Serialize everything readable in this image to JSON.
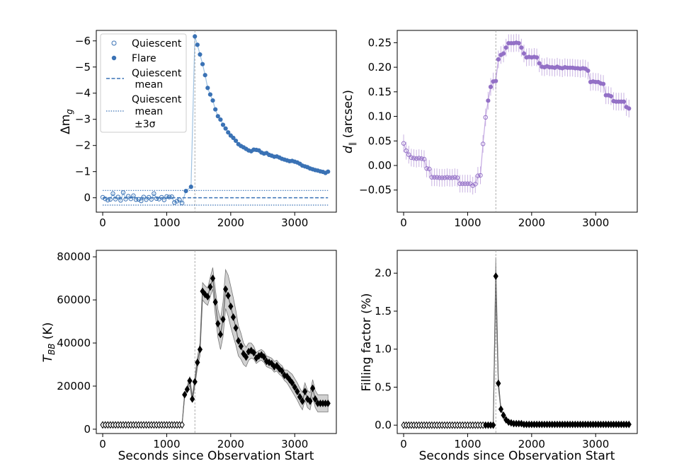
{
  "figure": {
    "xlabel": "Seconds since Observation Start",
    "flare_peak_time": 1440
  },
  "colors": {
    "quiescent": "#3a72b5",
    "flare": "#3a72b5",
    "purple": "#9370c6",
    "gray_band": "#9a9a9a",
    "black": "#000000"
  },
  "chart_data": [
    {
      "id": "dmag",
      "type": "scatter",
      "ylabel": "Δm_g",
      "ylabel_main": "Δm",
      "ylabel_sub": "g",
      "xlim": [
        -100,
        3650
      ],
      "ylim": [
        0.55,
        -6.4
      ],
      "xticks": [
        0,
        1000,
        2000,
        3000
      ],
      "yticks": [
        -6,
        -5,
        -4,
        -3,
        -2,
        -1,
        0
      ],
      "quiescent_mean": 0.0,
      "quiescent_3sigma": 0.28,
      "legend": {
        "position": "top-left",
        "quiescent": "Quiescent",
        "flare": "Flare",
        "mean_line1": "Quiescent",
        "mean_line2": " mean",
        "sig_line1": "Quiescent",
        "sig_line2": " mean",
        "sig_line3": "±3σ"
      },
      "quiescent": {
        "x": [
          0,
          40,
          80,
          120,
          160,
          200,
          240,
          280,
          320,
          360,
          400,
          440,
          480,
          520,
          560,
          600,
          640,
          680,
          720,
          760,
          800,
          840,
          880,
          920,
          960,
          1000,
          1040,
          1080,
          1120,
          1160,
          1200,
          1240
        ],
        "y": [
          -0.02,
          0.04,
          0.09,
          0.06,
          -0.16,
          0.05,
          -0.03,
          0.1,
          -0.2,
          0.05,
          -0.06,
          0.04,
          -0.08,
          0.07,
          0.06,
          0.12,
          -0.03,
          0.07,
          -0.02,
          0.06,
          -0.16,
          0.03,
          0.05,
          -0.02,
          0.08,
          -0.05,
          -0.03,
          -0.04,
          0.18,
          0.13,
          0.08,
          0.2
        ]
      },
      "flare": {
        "x": [
          1300,
          1380,
          1440,
          1480,
          1520,
          1560,
          1600,
          1640,
          1680,
          1720,
          1760,
          1800,
          1840,
          1880,
          1920,
          1960,
          2000,
          2040,
          2080,
          2120,
          2160,
          2200,
          2240,
          2280,
          2320,
          2360,
          2400,
          2440,
          2480,
          2520,
          2560,
          2600,
          2640,
          2680,
          2720,
          2760,
          2800,
          2840,
          2880,
          2920,
          2960,
          3000,
          3040,
          3080,
          3120,
          3160,
          3200,
          3240,
          3280,
          3320,
          3360,
          3400,
          3440,
          3480,
          3520
        ],
        "y": [
          -0.26,
          -0.42,
          -6.17,
          -5.85,
          -5.48,
          -5.11,
          -4.69,
          -4.2,
          -3.95,
          -3.72,
          -3.38,
          -3.12,
          -2.99,
          -2.79,
          -2.65,
          -2.5,
          -2.38,
          -2.29,
          -2.18,
          -2.05,
          -1.98,
          -1.93,
          -1.87,
          -1.81,
          -1.78,
          -1.84,
          -1.83,
          -1.81,
          -1.73,
          -1.69,
          -1.71,
          -1.64,
          -1.61,
          -1.57,
          -1.58,
          -1.54,
          -1.49,
          -1.46,
          -1.43,
          -1.4,
          -1.41,
          -1.38,
          -1.35,
          -1.3,
          -1.23,
          -1.2,
          -1.17,
          -1.12,
          -1.09,
          -1.06,
          -1.04,
          -1.01,
          -0.99,
          -0.95,
          -1.0
        ]
      }
    },
    {
      "id": "dpar",
      "type": "scatter",
      "ylabel": "d∥ (arcsec)",
      "ylabel_main": "d",
      "ylabel_sub": "∥",
      "ylabel_unit": " (arcsec)",
      "xlim": [
        -100,
        3650
      ],
      "ylim": [
        -0.095,
        0.275
      ],
      "xticks": [
        0,
        1000,
        2000,
        3000
      ],
      "yticks": [
        -0.05,
        0.0,
        0.05,
        0.1,
        0.15,
        0.2,
        0.25
      ],
      "ytick_labels": [
        "−0.05",
        "0.00",
        "0.05",
        "0.10",
        "0.15",
        "0.20",
        "0.25"
      ],
      "error": 0.018,
      "quiescent": {
        "x": [
          0,
          40,
          80,
          120,
          160,
          200,
          240,
          280,
          320,
          360,
          400,
          440,
          480,
          520,
          560,
          600,
          640,
          680,
          720,
          760,
          800,
          840,
          880,
          920,
          960,
          1000,
          1040,
          1080,
          1120,
          1160,
          1200,
          1240,
          1280
        ],
        "y": [
          0.045,
          0.03,
          0.022,
          0.016,
          0.015,
          0.014,
          0.015,
          0.014,
          0.013,
          -0.006,
          -0.007,
          -0.024,
          -0.024,
          -0.024,
          -0.025,
          -0.025,
          -0.025,
          -0.024,
          -0.025,
          -0.025,
          -0.024,
          -0.025,
          -0.037,
          -0.037,
          -0.037,
          -0.037,
          -0.037,
          -0.041,
          -0.038,
          -0.021,
          -0.02,
          0.044,
          0.098
        ]
      },
      "flare": {
        "x": [
          1320,
          1360,
          1400,
          1440,
          1480,
          1520,
          1560,
          1600,
          1640,
          1680,
          1720,
          1760,
          1800,
          1840,
          1880,
          1920,
          1960,
          2000,
          2040,
          2080,
          2120,
          2160,
          2200,
          2240,
          2280,
          2320,
          2360,
          2400,
          2440,
          2480,
          2520,
          2560,
          2600,
          2640,
          2680,
          2720,
          2760,
          2800,
          2840,
          2880,
          2920,
          2960,
          3000,
          3040,
          3080,
          3120,
          3160,
          3200,
          3240,
          3280,
          3320,
          3360,
          3400,
          3440,
          3480,
          3520
        ],
        "y": [
          0.132,
          0.16,
          0.171,
          0.172,
          0.216,
          0.225,
          0.228,
          0.24,
          0.249,
          0.249,
          0.249,
          0.25,
          0.249,
          0.24,
          0.228,
          0.22,
          0.221,
          0.22,
          0.221,
          0.22,
          0.208,
          0.201,
          0.2,
          0.202,
          0.2,
          0.2,
          0.199,
          0.201,
          0.199,
          0.198,
          0.2,
          0.199,
          0.199,
          0.199,
          0.198,
          0.198,
          0.197,
          0.198,
          0.197,
          0.193,
          0.17,
          0.171,
          0.17,
          0.17,
          0.167,
          0.166,
          0.143,
          0.143,
          0.141,
          0.131,
          0.13,
          0.13,
          0.13,
          0.13,
          0.119,
          0.116
        ]
      }
    },
    {
      "id": "tbb",
      "type": "scatter",
      "ylabel": "T_BB (K)",
      "ylabel_main": "T",
      "ylabel_sub": "BB",
      "ylabel_unit": " (K)",
      "xlim": [
        -100,
        3650
      ],
      "ylim": [
        -2000,
        83000
      ],
      "xticks": [
        0,
        1000,
        2000,
        3000
      ],
      "yticks": [
        0,
        20000,
        40000,
        60000,
        80000
      ],
      "x": [
        0,
        40,
        80,
        120,
        160,
        200,
        240,
        280,
        320,
        360,
        400,
        440,
        480,
        520,
        560,
        600,
        640,
        680,
        720,
        760,
        800,
        840,
        880,
        920,
        960,
        1000,
        1040,
        1080,
        1120,
        1160,
        1200,
        1240,
        1280,
        1320,
        1360,
        1400,
        1440,
        1480,
        1520,
        1560,
        1600,
        1640,
        1680,
        1720,
        1760,
        1800,
        1840,
        1880,
        1920,
        1960,
        2000,
        2040,
        2080,
        2120,
        2160,
        2200,
        2240,
        2280,
        2320,
        2360,
        2400,
        2440,
        2480,
        2520,
        2560,
        2600,
        2640,
        2680,
        2720,
        2760,
        2800,
        2840,
        2880,
        2920,
        2960,
        3000,
        3040,
        3080,
        3120,
        3160,
        3200,
        3240,
        3280,
        3320,
        3360,
        3400,
        3440,
        3480,
        3520
      ],
      "y": [
        2000,
        2000,
        2000,
        2000,
        2000,
        2000,
        2000,
        2000,
        2000,
        2000,
        2000,
        2000,
        2000,
        2000,
        2000,
        2000,
        2000,
        2000,
        2000,
        2000,
        2000,
        2000,
        2000,
        2000,
        2000,
        2000,
        2000,
        2000,
        2000,
        2000,
        2000,
        2000,
        16000,
        18500,
        22500,
        14000,
        22000,
        31000,
        37000,
        64000,
        62500,
        61500,
        66000,
        70000,
        59000,
        49000,
        44000,
        51000,
        65000,
        62000,
        57000,
        52000,
        47000,
        41000,
        38500,
        35000,
        33500,
        36000,
        36500,
        35500,
        33000,
        34000,
        34500,
        33500,
        31500,
        31000,
        30500,
        29000,
        29500,
        28000,
        27000,
        25000,
        24500,
        23000,
        21500,
        19500,
        17500,
        15000,
        13000,
        17500,
        14000,
        13000,
        19000,
        14000,
        12000,
        12000,
        12000,
        12000,
        12000
      ],
      "err": [
        0,
        0,
        0,
        0,
        0,
        0,
        0,
        0,
        0,
        0,
        0,
        0,
        0,
        0,
        0,
        0,
        0,
        0,
        0,
        0,
        0,
        0,
        0,
        0,
        0,
        0,
        0,
        0,
        0,
        0,
        0,
        0,
        1200,
        1500,
        2000,
        1500,
        2000,
        2500,
        3000,
        4000,
        4000,
        4000,
        4500,
        5000,
        6000,
        6500,
        7000,
        8000,
        9000,
        9500,
        9500,
        9000,
        8000,
        7000,
        6000,
        5000,
        4500,
        4000,
        3500,
        3000,
        2500,
        2500,
        2500,
        2500,
        2500,
        2500,
        2500,
        2500,
        2500,
        2500,
        2500,
        2500,
        3000,
        3500,
        4000,
        4000,
        4000,
        4000,
        4000,
        4000,
        4000,
        4000,
        4000,
        4000,
        4000,
        4000,
        4000,
        4000,
        4000
      ]
    },
    {
      "id": "fill",
      "type": "scatter",
      "ylabel": "Filling factor (%)",
      "xlim": [
        -100,
        3650
      ],
      "ylim": [
        -0.11,
        2.3
      ],
      "xticks": [
        0,
        1000,
        2000,
        3000
      ],
      "yticks": [
        0.0,
        0.5,
        1.0,
        1.5,
        2.0
      ],
      "ytick_labels": [
        "0.0",
        "0.5",
        "1.0",
        "1.5",
        "2.0"
      ],
      "x": [
        0,
        40,
        80,
        120,
        160,
        200,
        240,
        280,
        320,
        360,
        400,
        440,
        480,
        520,
        560,
        600,
        640,
        680,
        720,
        760,
        800,
        840,
        880,
        920,
        960,
        1000,
        1040,
        1080,
        1120,
        1160,
        1200,
        1240,
        1280,
        1320,
        1360,
        1400,
        1440,
        1480,
        1520,
        1560,
        1600,
        1640,
        1680,
        1720,
        1760,
        1800,
        1840,
        1880,
        1920,
        1960,
        2000,
        2040,
        2080,
        2120,
        2160,
        2200,
        2240,
        2280,
        2320,
        2360,
        2400,
        2440,
        2480,
        2520,
        2560,
        2600,
        2640,
        2680,
        2720,
        2760,
        2800,
        2840,
        2880,
        2920,
        2960,
        3000,
        3040,
        3080,
        3120,
        3160,
        3200,
        3240,
        3280,
        3320,
        3360,
        3400,
        3440,
        3480,
        3520
      ],
      "y": [
        0.0,
        0.0,
        0.0,
        0.0,
        0.0,
        0.0,
        0.0,
        0.0,
        0.0,
        0.0,
        0.0,
        0.0,
        0.0,
        0.0,
        0.0,
        0.0,
        0.0,
        0.0,
        0.0,
        0.0,
        0.0,
        0.0,
        0.0,
        0.0,
        0.0,
        0.0,
        0.0,
        0.0,
        0.0,
        0.0,
        0.0,
        0.0,
        0.0,
        0.0,
        0.0,
        0.0,
        1.96,
        0.55,
        0.21,
        0.13,
        0.07,
        0.04,
        0.03,
        0.02,
        0.02,
        0.02,
        0.02,
        0.01,
        0.01,
        0.01,
        0.01,
        0.01,
        0.01,
        0.01,
        0.01,
        0.01,
        0.01,
        0.01,
        0.01,
        0.01,
        0.01,
        0.01,
        0.01,
        0.01,
        0.01,
        0.01,
        0.01,
        0.01,
        0.01,
        0.01,
        0.01,
        0.01,
        0.01,
        0.01,
        0.01,
        0.01,
        0.01,
        0.01,
        0.01,
        0.01,
        0.01,
        0.01,
        0.01,
        0.01,
        0.01,
        0.01,
        0.01,
        0.01,
        0.01
      ],
      "err": [
        0,
        0,
        0,
        0,
        0,
        0,
        0,
        0,
        0,
        0,
        0,
        0,
        0,
        0,
        0,
        0,
        0,
        0,
        0,
        0,
        0,
        0,
        0,
        0,
        0,
        0,
        0,
        0,
        0,
        0,
        0,
        0,
        0,
        0,
        0,
        0,
        0.25,
        0.06,
        0.02,
        0.01,
        0.01,
        0,
        0,
        0,
        0,
        0,
        0,
        0,
        0,
        0,
        0,
        0,
        0,
        0,
        0,
        0,
        0,
        0,
        0,
        0,
        0,
        0,
        0,
        0,
        0,
        0,
        0,
        0,
        0,
        0,
        0,
        0,
        0,
        0,
        0,
        0,
        0,
        0,
        0,
        0,
        0,
        0,
        0,
        0,
        0,
        0,
        0,
        0,
        0
      ]
    }
  ]
}
